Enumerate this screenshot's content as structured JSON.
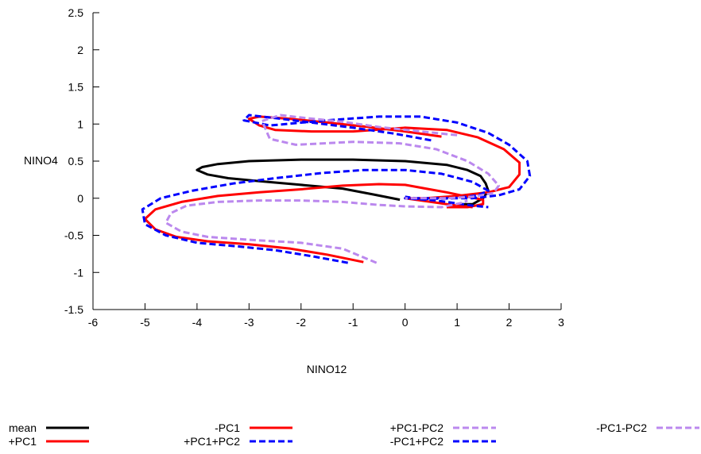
{
  "chart_data": {
    "type": "line",
    "title": "",
    "xlabel": "NINO12",
    "ylabel": "NINO4",
    "xlim": [
      -6,
      3
    ],
    "ylim": [
      -1.5,
      2.5
    ],
    "xticks": [
      -6,
      -5,
      -4,
      -3,
      -2,
      -1,
      0,
      1,
      2,
      3
    ],
    "yticks": [
      -1.5,
      -1,
      -0.5,
      0,
      0.5,
      1,
      1.5,
      2,
      2.5
    ],
    "xtick_labels": [
      "-6",
      "-5",
      "-4",
      "-3",
      "-2",
      "-1",
      "0",
      "1",
      "2",
      "3"
    ],
    "ytick_labels": [
      "-1.5",
      "-1",
      "-0.5",
      "0",
      "0.5",
      "1",
      "1.5",
      "2",
      "2.5"
    ],
    "grid": false,
    "legend_position": "bottom",
    "series": [
      {
        "name": "mean",
        "color": "#000000",
        "dash": "solid",
        "points": [
          [
            -0.1,
            -0.02
          ],
          [
            -0.6,
            0.05
          ],
          [
            -1.2,
            0.13
          ],
          [
            -2.0,
            0.18
          ],
          [
            -2.8,
            0.23
          ],
          [
            -3.4,
            0.27
          ],
          [
            -3.8,
            0.32
          ],
          [
            -4.0,
            0.38
          ],
          [
            -3.9,
            0.42
          ],
          [
            -3.6,
            0.46
          ],
          [
            -3.0,
            0.5
          ],
          [
            -2.0,
            0.52
          ],
          [
            -1.0,
            0.52
          ],
          [
            0.0,
            0.5
          ],
          [
            0.8,
            0.45
          ],
          [
            1.2,
            0.38
          ],
          [
            1.45,
            0.3
          ],
          [
            1.55,
            0.2
          ],
          [
            1.6,
            0.1
          ],
          [
            1.5,
            0.0
          ],
          [
            1.3,
            -0.08
          ],
          [
            1.0,
            -0.08
          ]
        ]
      },
      {
        "name": "+PC1",
        "color": "#ff0000",
        "dash": "solid",
        "points": [
          [
            -0.8,
            -0.86
          ],
          [
            -1.5,
            -0.76
          ],
          [
            -2.2,
            -0.68
          ],
          [
            -3.0,
            -0.62
          ],
          [
            -3.8,
            -0.58
          ],
          [
            -4.4,
            -0.52
          ],
          [
            -4.8,
            -0.42
          ],
          [
            -5.0,
            -0.28
          ],
          [
            -4.8,
            -0.15
          ],
          [
            -4.3,
            -0.05
          ],
          [
            -3.6,
            0.03
          ],
          [
            -2.8,
            0.08
          ],
          [
            -2.0,
            0.12
          ],
          [
            -1.2,
            0.17
          ],
          [
            -0.5,
            0.19
          ],
          [
            0.0,
            0.18
          ],
          [
            0.4,
            0.13
          ],
          [
            0.8,
            0.08
          ],
          [
            1.2,
            0.02
          ],
          [
            1.5,
            -0.02
          ],
          [
            1.5,
            -0.08
          ],
          [
            1.2,
            -0.12
          ],
          [
            0.8,
            -0.12
          ]
        ]
      },
      {
        "name": "-PC1",
        "color": "#ff0000",
        "dash": "solid",
        "points": [
          [
            0.7,
            0.83
          ],
          [
            0.0,
            0.9
          ],
          [
            -0.7,
            0.96
          ],
          [
            -1.5,
            1.02
          ],
          [
            -2.2,
            1.07
          ],
          [
            -2.8,
            1.1
          ],
          [
            -3.0,
            1.07
          ],
          [
            -2.8,
            0.98
          ],
          [
            -2.5,
            0.92
          ],
          [
            -1.8,
            0.9
          ],
          [
            -1.0,
            0.9
          ],
          [
            0.0,
            0.95
          ],
          [
            0.8,
            0.92
          ],
          [
            1.4,
            0.82
          ],
          [
            1.9,
            0.66
          ],
          [
            2.2,
            0.48
          ],
          [
            2.2,
            0.32
          ],
          [
            2.0,
            0.15
          ],
          [
            1.6,
            0.08
          ],
          [
            1.0,
            0.03
          ],
          [
            0.4,
            0.0
          ],
          [
            0.0,
            0.0
          ],
          [
            0.5,
            -0.05
          ],
          [
            1.0,
            -0.1
          ],
          [
            1.3,
            -0.12
          ]
        ]
      },
      {
        "name": "+PC1+PC2",
        "color": "#0000ff",
        "dash": "dashed",
        "points": [
          [
            -1.1,
            -0.87
          ],
          [
            -1.8,
            -0.78
          ],
          [
            -2.5,
            -0.7
          ],
          [
            -3.2,
            -0.65
          ],
          [
            -4.0,
            -0.6
          ],
          [
            -4.6,
            -0.5
          ],
          [
            -5.0,
            -0.35
          ],
          [
            -5.05,
            -0.15
          ],
          [
            -4.7,
            0.0
          ],
          [
            -4.1,
            0.1
          ],
          [
            -3.3,
            0.2
          ],
          [
            -2.5,
            0.27
          ],
          [
            -1.6,
            0.34
          ],
          [
            -0.8,
            0.38
          ],
          [
            0.0,
            0.38
          ],
          [
            0.7,
            0.33
          ],
          [
            1.3,
            0.22
          ],
          [
            1.6,
            0.1
          ],
          [
            1.4,
            0.04
          ],
          [
            0.9,
            0.0
          ],
          [
            0.4,
            -0.01
          ],
          [
            0.0,
            0.0
          ],
          [
            0.6,
            -0.03
          ],
          [
            1.3,
            -0.1
          ],
          [
            1.6,
            -0.12
          ]
        ]
      },
      {
        "name": "-PC1+PC2",
        "color": "#0000ff",
        "dash": "dashed",
        "points": [
          [
            0.5,
            0.78
          ],
          [
            -0.2,
            0.87
          ],
          [
            -1.0,
            0.95
          ],
          [
            -1.8,
            1.02
          ],
          [
            -2.5,
            1.08
          ],
          [
            -3.0,
            1.12
          ],
          [
            -3.1,
            1.05
          ],
          [
            -2.6,
            0.98
          ],
          [
            -1.5,
            1.05
          ],
          [
            -0.5,
            1.1
          ],
          [
            0.3,
            1.1
          ],
          [
            1.0,
            1.02
          ],
          [
            1.6,
            0.88
          ],
          [
            2.0,
            0.72
          ],
          [
            2.35,
            0.5
          ],
          [
            2.4,
            0.3
          ],
          [
            2.2,
            0.12
          ],
          [
            1.8,
            0.04
          ],
          [
            1.3,
            0.0
          ],
          [
            0.7,
            0.0
          ],
          [
            0.2,
            0.0
          ],
          [
            0.0,
            0.02
          ]
        ]
      },
      {
        "name": "+PC1-PC2",
        "color": "#bb88ee",
        "dash": "dashed",
        "points": [
          [
            -0.55,
            -0.87
          ],
          [
            -1.2,
            -0.68
          ],
          [
            -2.0,
            -0.6
          ],
          [
            -3.0,
            -0.56
          ],
          [
            -3.8,
            -0.52
          ],
          [
            -4.3,
            -0.45
          ],
          [
            -4.6,
            -0.33
          ],
          [
            -4.5,
            -0.2
          ],
          [
            -4.2,
            -0.1
          ],
          [
            -3.6,
            -0.05
          ],
          [
            -2.8,
            -0.03
          ],
          [
            -2.0,
            -0.03
          ],
          [
            -1.2,
            -0.05
          ],
          [
            -0.5,
            -0.09
          ],
          [
            0.0,
            -0.11
          ],
          [
            0.7,
            -0.12
          ],
          [
            1.1,
            -0.06
          ],
          [
            1.2,
            -0.03
          ]
        ]
      },
      {
        "name": "-PC1-PC2",
        "color": "#bb88ee",
        "dash": "dashed",
        "points": [
          [
            1.0,
            0.85
          ],
          [
            0.3,
            0.9
          ],
          [
            -0.5,
            0.96
          ],
          [
            -1.2,
            1.03
          ],
          [
            -1.9,
            1.08
          ],
          [
            -2.4,
            1.12
          ],
          [
            -2.75,
            1.04
          ],
          [
            -2.6,
            0.8
          ],
          [
            -2.1,
            0.72
          ],
          [
            -1.0,
            0.76
          ],
          [
            -0.1,
            0.74
          ],
          [
            0.6,
            0.66
          ],
          [
            1.2,
            0.5
          ],
          [
            1.6,
            0.33
          ],
          [
            1.8,
            0.17
          ],
          [
            1.7,
            0.07
          ],
          [
            1.3,
            0.02
          ],
          [
            0.8,
            0.0
          ],
          [
            0.2,
            0.0
          ],
          [
            0.0,
            0.0
          ]
        ]
      }
    ]
  }
}
